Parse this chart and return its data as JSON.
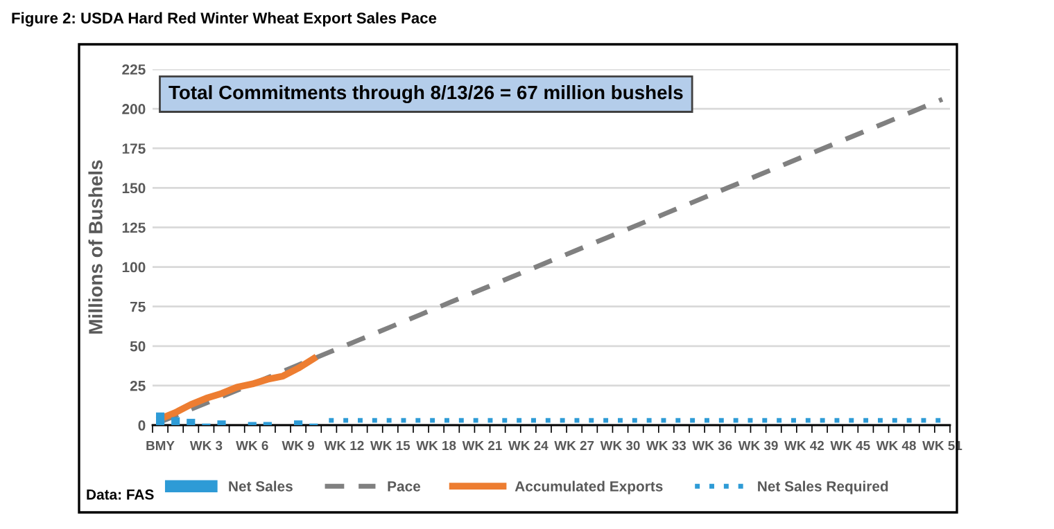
{
  "chart_data": {
    "type": "line",
    "title": "Figure 2: USDA Hard Red Winter Wheat Export Sales Pace",
    "ylabel": "Millions of Bushels",
    "annotations": [
      "Total Commitments through 8/13/26 = 67 million bushels",
      "Data: FAS"
    ],
    "categories": [
      "BMY",
      null,
      null,
      "WK 3",
      null,
      null,
      "WK 6",
      null,
      null,
      "WK 9",
      null,
      null,
      "WK 12",
      null,
      null,
      "WK 15",
      null,
      null,
      "WK 18",
      null,
      null,
      "WK 21",
      null,
      null,
      "WK 24",
      null,
      null,
      "WK 27",
      null,
      null,
      "WK 30",
      null,
      null,
      "WK 33",
      null,
      null,
      "WK 36",
      null,
      null,
      "WK 39",
      null,
      null,
      "WK 42",
      null,
      null,
      "WK 45",
      null,
      null,
      "WK 48",
      null,
      null,
      "WK 51"
    ],
    "series": [
      {
        "name": "Net Sales",
        "type": "bar",
        "color": "#2e9bd6",
        "values": [
          8,
          5,
          4,
          1,
          3,
          null,
          2,
          2,
          null,
          3,
          1,
          null,
          null,
          null,
          null,
          null,
          null,
          null,
          null,
          null,
          null,
          null,
          null,
          null,
          null,
          null,
          null,
          null,
          null,
          null,
          null,
          null,
          null,
          null,
          null,
          null,
          null,
          null,
          null,
          null,
          null,
          null,
          null,
          null,
          null,
          null,
          null,
          null,
          null,
          null,
          null,
          null
        ]
      },
      {
        "name": "Pace",
        "line_style": "dashed",
        "color": "#808080",
        "values": [
          2,
          6,
          10,
          14,
          18,
          22,
          26,
          30,
          34,
          38,
          42,
          46,
          50,
          54,
          58,
          62,
          66,
          70,
          74,
          78,
          82,
          86,
          90,
          94,
          98,
          102,
          106,
          110,
          114,
          118,
          122,
          126,
          130,
          134,
          138,
          142,
          146,
          150,
          154,
          158,
          162,
          166,
          170,
          174,
          178,
          182,
          186,
          190,
          194,
          198,
          202,
          206
        ]
      },
      {
        "name": "Accumulated Exports",
        "line_style": "solid",
        "color": "#ed7d31",
        "values": [
          4,
          8,
          13,
          17,
          20,
          24,
          26,
          29,
          31,
          36,
          42,
          null,
          null,
          null,
          null,
          null,
          null,
          null,
          null,
          null,
          null,
          null,
          null,
          null,
          null,
          null,
          null,
          null,
          null,
          null,
          null,
          null,
          null,
          null,
          null,
          null,
          null,
          null,
          null,
          null,
          null,
          null,
          null,
          null,
          null,
          null,
          null,
          null,
          null,
          null,
          null,
          null
        ]
      },
      {
        "name": "Net Sales Required",
        "line_style": "dotted",
        "color": "#2e9bd6",
        "values": [
          null,
          null,
          null,
          null,
          null,
          null,
          null,
          null,
          null,
          null,
          null,
          3,
          3,
          3,
          3,
          3,
          3,
          3,
          3,
          3,
          3,
          3,
          3,
          3,
          3,
          3,
          3,
          3,
          3,
          3,
          3,
          3,
          3,
          3,
          3,
          3,
          3,
          3,
          3,
          3,
          3,
          3,
          3,
          3,
          3,
          3,
          3,
          3,
          3,
          3,
          3,
          3
        ]
      }
    ],
    "ylim": [
      0,
      225
    ],
    "yticks": [
      0,
      25,
      50,
      75,
      100,
      125,
      150,
      175,
      200,
      225
    ],
    "grid": "y",
    "legend": "bottom"
  }
}
